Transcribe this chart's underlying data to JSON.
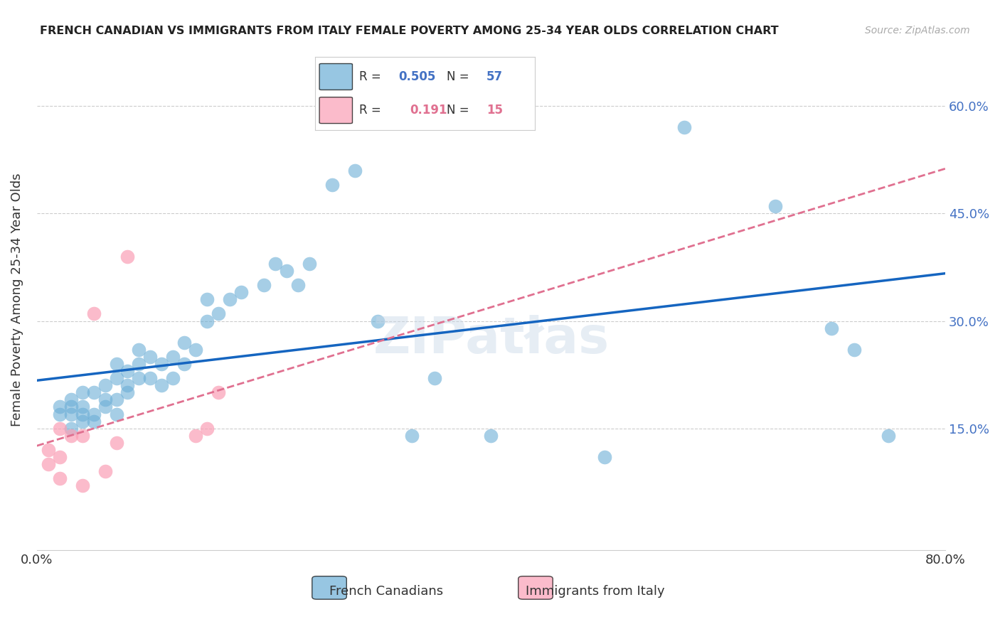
{
  "title": "FRENCH CANADIAN VS IMMIGRANTS FROM ITALY FEMALE POVERTY AMONG 25-34 YEAR OLDS CORRELATION CHART",
  "source": "Source: ZipAtlas.com",
  "xlabel": "",
  "ylabel": "Female Poverty Among 25-34 Year Olds",
  "xlim": [
    0,
    0.8
  ],
  "ylim": [
    -0.02,
    0.68
  ],
  "xtick_positions": [
    0.0,
    0.1,
    0.2,
    0.3,
    0.4,
    0.5,
    0.6,
    0.7,
    0.8
  ],
  "xticklabels": [
    "0.0%",
    "",
    "",
    "",
    "",
    "",
    "",
    "",
    "80.0%"
  ],
  "ytick_positions": [
    0.15,
    0.3,
    0.45,
    0.6
  ],
  "ytick_labels": [
    "15.0%",
    "30.0%",
    "45.0%",
    "60.0%"
  ],
  "legend_label1": "French Canadians",
  "legend_label2": "Immigrants from Italy",
  "R1": 0.505,
  "N1": 57,
  "R2": 0.191,
  "N2": 15,
  "blue_color": "#6baed6",
  "pink_color": "#fa9fb5",
  "blue_line_color": "#1565C0",
  "pink_line_color": "#e07090",
  "background_color": "#ffffff",
  "blue_x": [
    0.02,
    0.02,
    0.03,
    0.03,
    0.03,
    0.03,
    0.04,
    0.04,
    0.04,
    0.04,
    0.05,
    0.05,
    0.05,
    0.06,
    0.06,
    0.06,
    0.07,
    0.07,
    0.07,
    0.07,
    0.08,
    0.08,
    0.08,
    0.09,
    0.09,
    0.09,
    0.1,
    0.1,
    0.11,
    0.11,
    0.12,
    0.12,
    0.13,
    0.13,
    0.14,
    0.15,
    0.15,
    0.16,
    0.17,
    0.18,
    0.2,
    0.21,
    0.22,
    0.23,
    0.24,
    0.26,
    0.28,
    0.3,
    0.33,
    0.35,
    0.4,
    0.5,
    0.57,
    0.65,
    0.7,
    0.72,
    0.75
  ],
  "blue_y": [
    0.17,
    0.18,
    0.15,
    0.17,
    0.18,
    0.19,
    0.16,
    0.17,
    0.18,
    0.2,
    0.16,
    0.17,
    0.2,
    0.18,
    0.19,
    0.21,
    0.17,
    0.19,
    0.22,
    0.24,
    0.2,
    0.21,
    0.23,
    0.22,
    0.24,
    0.26,
    0.22,
    0.25,
    0.21,
    0.24,
    0.22,
    0.25,
    0.24,
    0.27,
    0.26,
    0.3,
    0.33,
    0.31,
    0.33,
    0.34,
    0.35,
    0.38,
    0.37,
    0.35,
    0.38,
    0.49,
    0.51,
    0.3,
    0.14,
    0.22,
    0.14,
    0.11,
    0.57,
    0.46,
    0.29,
    0.26,
    0.14
  ],
  "pink_x": [
    0.01,
    0.01,
    0.02,
    0.02,
    0.02,
    0.03,
    0.04,
    0.04,
    0.05,
    0.06,
    0.07,
    0.08,
    0.14,
    0.15,
    0.16
  ],
  "pink_y": [
    0.1,
    0.12,
    0.08,
    0.11,
    0.15,
    0.14,
    0.07,
    0.14,
    0.31,
    0.09,
    0.13,
    0.39,
    0.14,
    0.15,
    0.2
  ]
}
